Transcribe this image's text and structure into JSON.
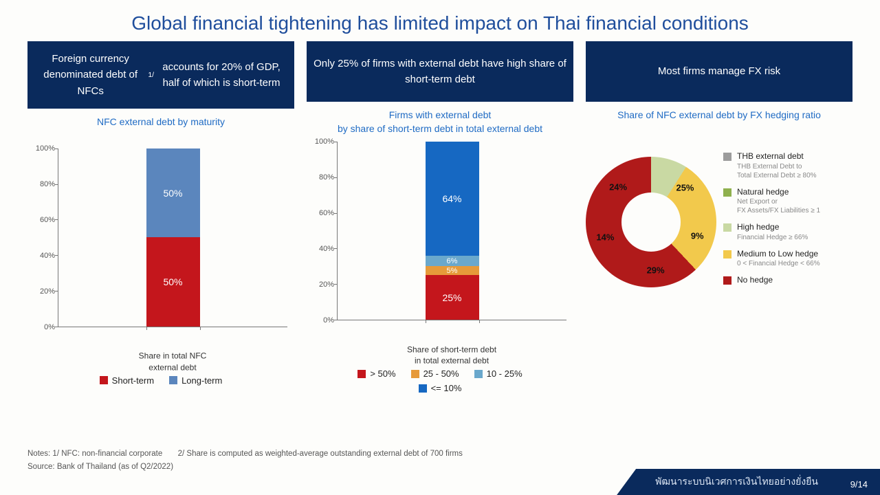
{
  "title": "Global financial tightening has limited impact on Thai financial conditions",
  "panel1": {
    "header": "Foreign currency denominated debt of NFCs<sup>1/</sup> accounts for 20% of GDP, half of which is short-term",
    "chart_title": "NFC external debt by maturity",
    "type": "stacked-bar",
    "ylim": [
      0,
      100
    ],
    "ytick_step": 20,
    "y_unit": "%",
    "x_label": "Share in total NFC\nexternal debt",
    "segments": [
      {
        "name": "Short-term",
        "value": 50,
        "label": "50%",
        "color": "#c4161c"
      },
      {
        "name": "Long-term",
        "value": 50,
        "label": "50%",
        "color": "#5b86bd"
      }
    ],
    "legend": [
      {
        "label": "Short-term",
        "color": "#c4161c"
      },
      {
        "label": "Long-term",
        "color": "#5b86bd"
      }
    ]
  },
  "panel2": {
    "header": "Only 25% of firms with external debt have high share of short-term debt",
    "chart_title": "Firms with external debt\nby share of short-term debt in total external debt",
    "type": "stacked-bar",
    "ylim": [
      0,
      100
    ],
    "ytick_step": 20,
    "y_unit": "%",
    "x_label": "Share of short-term debt\nin total external debt",
    "segments": [
      {
        "name": "> 50%",
        "value": 25,
        "label": "25%",
        "color": "#c4161c"
      },
      {
        "name": "25 - 50%",
        "value": 5,
        "label": "5%",
        "color": "#e69a3a"
      },
      {
        "name": "10 - 25%",
        "value": 6,
        "label": "6%",
        "color": "#6aa8cc"
      },
      {
        "name": "<= 10%",
        "value": 64,
        "label": "64%",
        "color": "#1668c2"
      }
    ],
    "legend": [
      {
        "label": "> 50%",
        "color": "#c4161c"
      },
      {
        "label": "25 - 50%",
        "color": "#e69a3a"
      },
      {
        "label": "10 - 25%",
        "color": "#6aa8cc"
      },
      {
        "label": "<= 10%",
        "color": "#1668c2"
      }
    ]
  },
  "panel3": {
    "header": "Most firms manage FX risk",
    "chart_title": "Share of NFC external debt by FX hedging ratio",
    "type": "donut",
    "slices": [
      {
        "name": "THB external debt",
        "value": 24,
        "label": "24%",
        "color": "#9c9c9c",
        "sub": "THB External Debt to\nTotal External Debt ≥ 80%"
      },
      {
        "name": "Natural hedge",
        "value": 25,
        "label": "25%",
        "color": "#8fb04e",
        "sub": "Net Export or\nFX Assets/FX Liabilities ≥ 1"
      },
      {
        "name": "High hedge",
        "value": 9,
        "label": "9%",
        "color": "#c9d9a3",
        "sub": "Financial Hedge ≥ 66%"
      },
      {
        "name": "Medium to Low hedge",
        "value": 29,
        "label": "29%",
        "color": "#f2c94c",
        "sub": "0 < Financial Hedge < 66%"
      },
      {
        "name": "No hedge",
        "value": 14,
        "label": "14%",
        "color": "#b01a1a",
        "sub": ""
      }
    ]
  },
  "notes": {
    "n1": "Notes: 1/ NFC: non-financial corporate",
    "n2": "2/ Share is computed as weighted-average outstanding external debt of 700 firms",
    "source": "Source: Bank of Thailand (as of Q2/2022)"
  },
  "footer_text": "พัฒนาระบบนิเวศการเงินไทยอย่างยั่งยืน",
  "page": "9/14"
}
